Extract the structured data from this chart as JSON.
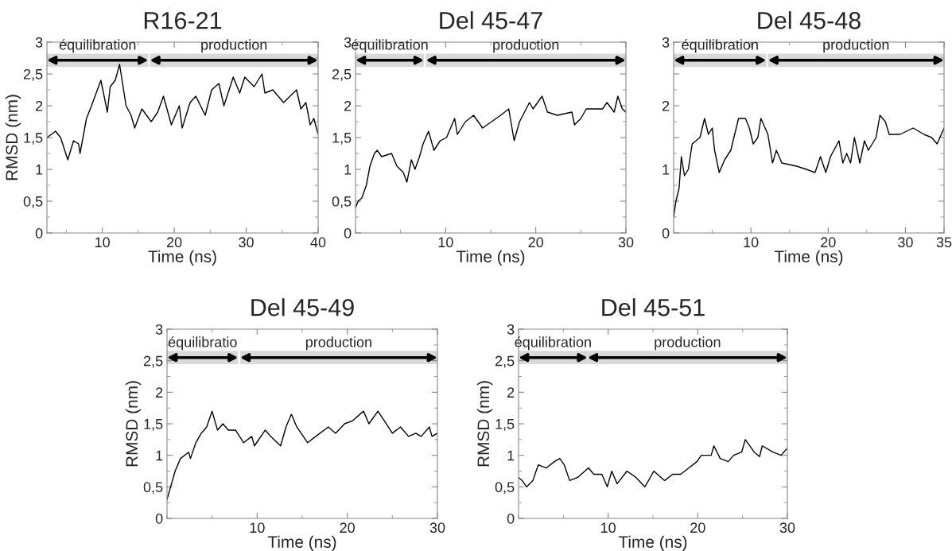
{
  "chart_data": [
    {
      "type": "line",
      "title": "R16-21",
      "xlabel": "Time (ns)",
      "ylabel": "RMSD (nm)",
      "xlim": [
        2.3,
        40
      ],
      "xticks": [
        10,
        20,
        30,
        40
      ],
      "ylim": [
        0,
        3
      ],
      "yticks": [
        0,
        {
          "value": 0.5,
          "label": "0,5"
        },
        1,
        {
          "value": 1.5,
          "label": "1,5"
        },
        2,
        {
          "value": 2.5,
          "label": "2,5"
        },
        3
      ],
      "x": [
        2.3,
        3.5,
        4.2,
        5.2,
        6,
        6.7,
        6.9,
        7.8,
        8.5,
        9.8,
        10.7,
        11.1,
        11.8,
        12.4,
        13.3,
        14,
        14.5,
        15.5,
        16.8,
        17.7,
        18.5,
        19.6,
        20.7,
        21.1,
        22.2,
        23,
        24.3,
        25.2,
        26.2,
        26.9,
        28.2,
        29.1,
        29.8,
        31.1,
        32.2,
        32.6,
        33.7,
        35.2,
        37,
        37.6,
        38.3,
        38.9,
        39.4,
        40
      ],
      "series": [
        {
          "color": "#000000",
          "values": [
            1.5,
            1.6,
            1.5,
            1.15,
            1.45,
            1.4,
            1.25,
            1.8,
            2.0,
            2.4,
            1.9,
            2.3,
            2.4,
            2.65,
            2.0,
            1.85,
            1.65,
            1.95,
            1.75,
            1.9,
            2.15,
            1.7,
            2.0,
            1.65,
            2.05,
            2.15,
            1.85,
            2.25,
            2.35,
            2.0,
            2.45,
            2.2,
            2.45,
            2.3,
            2.5,
            2.2,
            2.25,
            2.05,
            2.25,
            1.95,
            2.05,
            1.7,
            1.8,
            1.55
          ]
        }
      ],
      "bands": [
        {
          "axis": "x",
          "from": 2.3,
          "to": 16.4,
          "label": "équilibration"
        },
        {
          "axis": "x",
          "from": 16.6,
          "to": 40,
          "label": "production"
        }
      ]
    },
    {
      "type": "line",
      "title": "Del 45-47",
      "xlabel": "Time (ns)",
      "xlim": [
        0,
        30
      ],
      "xticks": [
        10,
        20,
        30
      ],
      "ylim": [
        0,
        3
      ],
      "yticks": [
        0,
        {
          "value": 0.5,
          "label": "0,5"
        },
        1,
        {
          "value": 1.5,
          "label": "1,5"
        },
        2,
        {
          "value": 2.5,
          "label": "2,5"
        },
        3
      ],
      "x": [
        0,
        0.3,
        0.7,
        1.2,
        1.6,
        2.1,
        2.4,
        2.9,
        4,
        4.6,
        5.3,
        5.7,
        6.2,
        6.6,
        7.1,
        7.5,
        8.1,
        8.7,
        9.4,
        10.1,
        11,
        11.3,
        12.2,
        13.1,
        14.1,
        15.1,
        16.1,
        17,
        17.6,
        18.2,
        19.3,
        19.7,
        20.7,
        21.3,
        22.4,
        24,
        24.3,
        25,
        25.6,
        27.4,
        27.9,
        28.7,
        29.1,
        29.6,
        30
      ],
      "series": [
        {
          "color": "#000000",
          "values": [
            0.4,
            0.5,
            0.55,
            0.75,
            1.05,
            1.25,
            1.3,
            1.2,
            1.25,
            1.05,
            0.95,
            0.8,
            1.15,
            1.0,
            1.2,
            1.4,
            1.6,
            1.3,
            1.45,
            1.5,
            1.8,
            1.55,
            1.75,
            1.85,
            1.65,
            1.75,
            1.85,
            1.95,
            1.45,
            1.75,
            2.05,
            1.95,
            2.15,
            1.9,
            1.85,
            1.9,
            1.7,
            1.8,
            1.95,
            1.95,
            2.05,
            1.9,
            2.15,
            1.95,
            1.9
          ]
        }
      ],
      "bands": [
        {
          "axis": "x",
          "from": 0,
          "to": 7.6,
          "label": "équilibration"
        },
        {
          "axis": "x",
          "from": 7.8,
          "to": 30,
          "label": "production"
        }
      ]
    },
    {
      "type": "line",
      "title": "Del 45-48",
      "xlabel": "Time (ns)",
      "xlim": [
        0,
        35
      ],
      "xticks": [
        10,
        20,
        30,
        35
      ],
      "ylim": [
        0,
        3
      ],
      "yticks": [
        0,
        {
          "value": 0.5,
          "label": null
        },
        1,
        {
          "value": 1.5,
          "label": null
        },
        2,
        {
          "value": 2.5,
          "label": null
        },
        3
      ],
      "x": [
        0,
        0.3,
        0.7,
        1,
        1.4,
        1.9,
        2.4,
        3.4,
        4,
        4.5,
        5,
        5.3,
        5.9,
        6.6,
        7.4,
        7.9,
        8.4,
        9.3,
        9.8,
        10.3,
        10.9,
        11.3,
        12.2,
        12.8,
        13.3,
        14,
        15.9,
        17.2,
        18.3,
        19,
        19.7,
        20.3,
        21.4,
        21.9,
        22.4,
        22.9,
        23.4,
        24.1,
        24.7,
        25.2,
        26.2,
        26.7,
        27.4,
        27.9,
        29.3,
        31,
        32.4,
        33.4,
        34.1,
        35
      ],
      "series": [
        {
          "color": "#000000",
          "values": [
            0.25,
            0.5,
            0.7,
            1.2,
            0.9,
            1.0,
            1.4,
            1.5,
            1.8,
            1.55,
            1.65,
            1.3,
            0.95,
            1.15,
            1.3,
            1.55,
            1.8,
            1.8,
            1.65,
            1.4,
            1.5,
            1.8,
            1.55,
            1.1,
            1.3,
            1.1,
            1.05,
            1.0,
            0.95,
            1.2,
            0.95,
            1.2,
            1.45,
            1.1,
            1.25,
            1.1,
            1.5,
            1.1,
            1.45,
            1.3,
            1.5,
            1.85,
            1.75,
            1.55,
            1.55,
            1.65,
            1.55,
            1.5,
            1.4,
            1.65
          ]
        }
      ],
      "bands": [
        {
          "axis": "x",
          "from": 0,
          "to": 12,
          "label": "équilibration"
        },
        {
          "axis": "x",
          "from": 12.2,
          "to": 35,
          "label": "production"
        }
      ]
    },
    {
      "type": "line",
      "title": "Del 45-49",
      "xlabel": "Time (ns)",
      "ylabel": "RMSD (nm)",
      "xlim": [
        0,
        30
      ],
      "xticks": [
        10,
        20,
        30
      ],
      "ylim": [
        0,
        3
      ],
      "yticks": [
        0,
        {
          "value": 0.5,
          "label": "0,5"
        },
        1,
        {
          "value": 1.5,
          "label": "1,5"
        },
        2,
        {
          "value": 2.5,
          "label": "2,5"
        },
        3
      ],
      "x": [
        0,
        0.4,
        0.9,
        1.5,
        2.4,
        2.6,
        3.2,
        3.8,
        4.4,
        5,
        5.6,
        6.2,
        6.8,
        7.6,
        8.5,
        9.4,
        9.7,
        10.9,
        11.5,
        12.6,
        13.2,
        13.8,
        14.4,
        15.6,
        16.5,
        17.9,
        18.7,
        19.7,
        20.6,
        21.8,
        22.4,
        23.4,
        24.1,
        25,
        25.9,
        26.8,
        27.6,
        28.2,
        29.1,
        29.4,
        30
      ],
      "series": [
        {
          "color": "#000000",
          "values": [
            0.3,
            0.5,
            0.75,
            0.95,
            1.05,
            0.95,
            1.2,
            1.35,
            1.45,
            1.7,
            1.4,
            1.5,
            1.4,
            1.4,
            1.2,
            1.3,
            1.15,
            1.4,
            1.3,
            1.15,
            1.45,
            1.65,
            1.45,
            1.2,
            1.3,
            1.45,
            1.35,
            1.5,
            1.55,
            1.7,
            1.5,
            1.7,
            1.55,
            1.35,
            1.45,
            1.3,
            1.35,
            1.3,
            1.45,
            1.3,
            1.35
          ]
        }
      ],
      "bands": [
        {
          "axis": "x",
          "from": 0,
          "to": 7.9,
          "label": "équilibratio"
        },
        {
          "axis": "x",
          "from": 8.1,
          "to": 30,
          "label": "production"
        }
      ]
    },
    {
      "type": "line",
      "title": "Del 45-51",
      "xlabel": "Time (ns)",
      "ylabel": "RMSD (nm)",
      "xlim": [
        0,
        30
      ],
      "xticks": [
        10,
        20,
        30
      ],
      "ylim": [
        0,
        3
      ],
      "yticks": [
        0,
        {
          "value": 0.5,
          "label": "0,5"
        },
        1,
        {
          "value": 1.5,
          "label": "1,5"
        },
        2,
        {
          "value": 2.5,
          "label": "2,5"
        },
        3
      ],
      "x": [
        0,
        0.4,
        0.9,
        1.6,
        2.2,
        3.1,
        4,
        4.6,
        5.1,
        5.7,
        6.6,
        7.8,
        8.4,
        9.3,
        9.9,
        10.4,
        11,
        12.1,
        13.1,
        14.1,
        15.1,
        16.3,
        17.2,
        18.1,
        19,
        19.9,
        20.4,
        21.5,
        21.8,
        22.5,
        23.4,
        24,
        24.9,
        25.3,
        26.3,
        26.9,
        27.2,
        28.4,
        29.3,
        29.9
      ],
      "series": [
        {
          "color": "#000000",
          "values": [
            0.65,
            0.6,
            0.5,
            0.6,
            0.85,
            0.8,
            0.9,
            0.95,
            0.85,
            0.6,
            0.65,
            0.8,
            0.7,
            0.7,
            0.5,
            0.75,
            0.55,
            0.75,
            0.65,
            0.5,
            0.75,
            0.6,
            0.7,
            0.7,
            0.8,
            0.9,
            1.0,
            1.0,
            1.15,
            0.95,
            0.9,
            1.0,
            1.05,
            1.25,
            1.05,
            0.98,
            1.15,
            1.05,
            1.0,
            1.1
          ]
        }
      ],
      "bands": [
        {
          "axis": "x",
          "from": 0,
          "to": 7.7,
          "label": "équilibration"
        },
        {
          "axis": "x",
          "from": 7.7,
          "to": 30,
          "label": "production"
        }
      ]
    }
  ]
}
